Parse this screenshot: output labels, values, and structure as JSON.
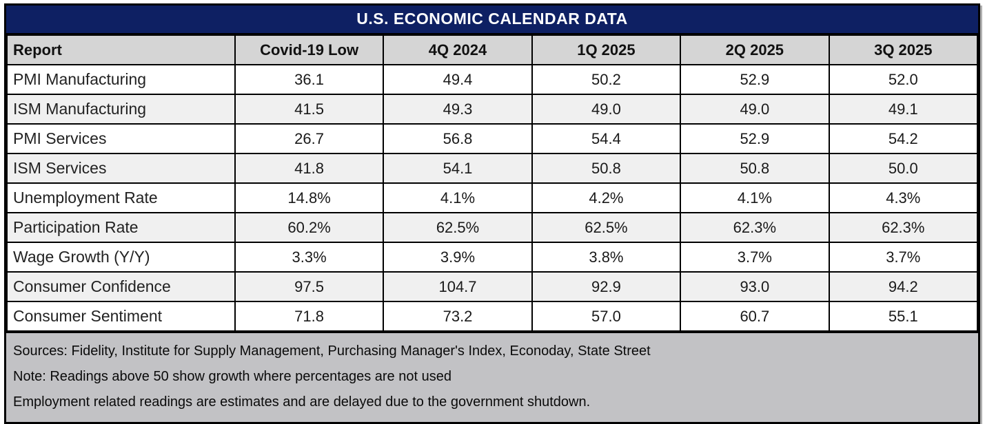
{
  "title": "U.S. ECONOMIC CALENDAR DATA",
  "chart_data": {
    "type": "table",
    "title": "U.S. ECONOMIC CALENDAR DATA",
    "columns": [
      "Report",
      "Covid-19 Low",
      "4Q 2024",
      "1Q 2025",
      "2Q 2025",
      "3Q 2025"
    ],
    "rows": [
      {
        "label": "PMI Manufacturing",
        "values": [
          "36.1",
          "49.4",
          "50.2",
          "52.9",
          "52.0"
        ]
      },
      {
        "label": "ISM Manufacturing",
        "values": [
          "41.5",
          "49.3",
          "49.0",
          "49.0",
          "49.1"
        ]
      },
      {
        "label": "PMI Services",
        "values": [
          "26.7",
          "56.8",
          "54.4",
          "52.9",
          "54.2"
        ]
      },
      {
        "label": "ISM Services",
        "values": [
          "41.8",
          "54.1",
          "50.8",
          "50.8",
          "50.0"
        ]
      },
      {
        "label": "Unemployment Rate",
        "values": [
          "14.8%",
          "4.1%",
          "4.2%",
          "4.1%",
          "4.3%"
        ]
      },
      {
        "label": "Participation Rate",
        "values": [
          "60.2%",
          "62.5%",
          "62.5%",
          "62.3%",
          "62.3%"
        ]
      },
      {
        "label": "Wage Growth (Y/Y)",
        "values": [
          "3.3%",
          "3.9%",
          "3.8%",
          "3.7%",
          "3.7%"
        ]
      },
      {
        "label": "Consumer Confidence",
        "values": [
          "97.5",
          "104.7",
          "92.9",
          "93.0",
          "94.2"
        ]
      },
      {
        "label": "Consumer Sentiment",
        "values": [
          "71.8",
          "73.2",
          "57.0",
          "60.7",
          "55.1"
        ]
      }
    ]
  },
  "footnotes": [
    "Sources: Fidelity, Institute for Supply Management, Purchasing Manager's Index, Econoday, State Street",
    "Note: Readings above 50 show growth where percentages are not used",
    "Employment related readings are estimates and are delayed due to the government shutdown."
  ],
  "colors": {
    "title_bar": "#0E2063",
    "title_text": "#FFFFFF",
    "header_bg": "#D5D5D5",
    "row_bg": "#FFFFFF",
    "alt_row_bg": "#F0F0F0",
    "footer_bg": "#C2C2C5",
    "border": "#000000"
  }
}
